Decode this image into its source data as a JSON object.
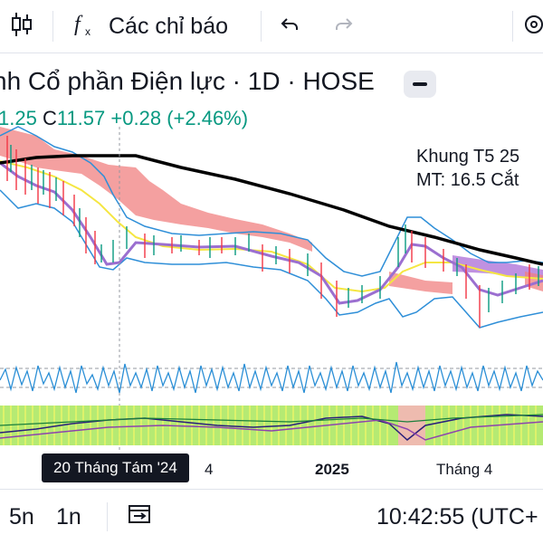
{
  "toolbar": {
    "chart_type_icon": "candlestick-icon",
    "indicators_icon": "fx-icon",
    "indicators_label": "Các chỉ báo",
    "undo_icon": "undo-icon",
    "redo_icon": "redo-icon",
    "settings_icon": "settings-icon"
  },
  "legend": {
    "title": "nh Cổ phần Điện lực · 1D · HOSE",
    "open_fragment": "1.25",
    "close_label": "C",
    "close_value": "11.57",
    "change": "+0.28",
    "change_pct": "(+2.46%)",
    "collapse_icon": "minus-icon"
  },
  "annotation": {
    "line1": "Khung T5 25",
    "line2": "MT: 16.5 Cắt"
  },
  "xaxis": {
    "labels": [
      "4",
      "2025",
      "Tháng 4"
    ],
    "crosshair_date": "20 Tháng Tám '24"
  },
  "bottombar": {
    "interval_5n": "5n",
    "interval_1n": "1n",
    "compare_icon": "date-range-icon",
    "time": "10:42:55 (UTC+"
  },
  "colors": {
    "up": "#089981",
    "down": "#f23645",
    "ma_black": "#000000",
    "bollinger": "#2f8fd8",
    "ma_yellow": "#f5e642",
    "ma_purple": "#9b6fd0",
    "cloud_red": "#f08080",
    "cloud_purple": "#b57edc",
    "oscillator": "#2b8fd6",
    "histogram_green": "#a8e65a"
  }
}
